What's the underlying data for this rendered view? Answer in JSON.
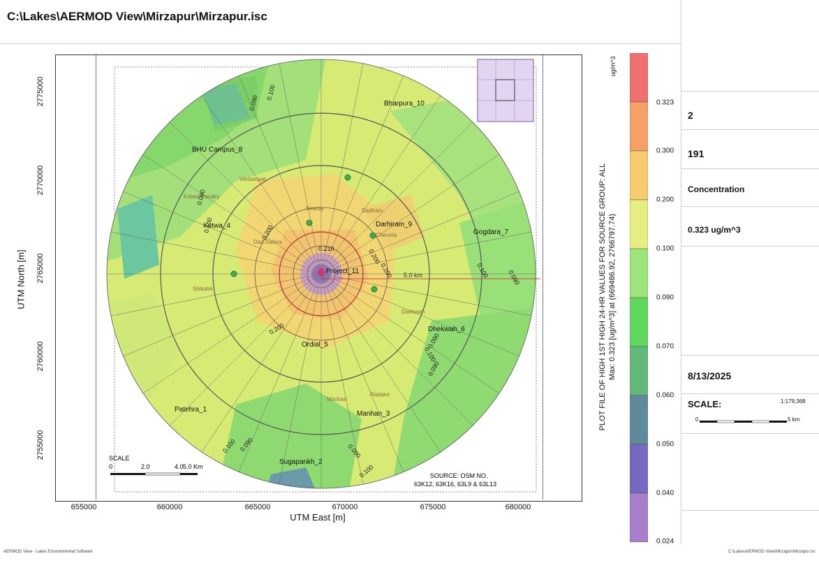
{
  "title": "C:\\Lakes\\AERMOD View\\Mirzapur\\Mirzapur.isc",
  "axes": {
    "xlabel": "UTM East [m]",
    "ylabel": "UTM North [m]",
    "xticks": [
      "655000",
      "660000",
      "665000",
      "670000",
      "675000",
      "680000"
    ],
    "yticks": [
      "2775000",
      "2770000",
      "2765000",
      "2760000",
      "2755000"
    ]
  },
  "plot_title": "PLOT FILE OF HIGH 1ST HIGH 24-HR VALUES FOR SOURCE GROUP: ALL",
  "max_line": "Max:  0.323  [ug/m^3]  at (669486.92, 2766797.74)",
  "legend": {
    "unit": "ug/m^3",
    "levels": [
      "0.323",
      "0.300",
      "0.200",
      "0.100",
      "0.090",
      "0.070",
      "0.060",
      "0.050",
      "0.040",
      "0.024"
    ],
    "colors": [
      "#f07070",
      "#f6a066",
      "#f8cc6e",
      "#e6ee82",
      "#9ce57a",
      "#60d85e",
      "#62b878",
      "#5e8a9c",
      "#7768c4",
      "#a77fcc"
    ]
  },
  "map": {
    "places": [
      "Bharpura_10",
      "BHU Campus_8",
      "Kotwa_4",
      "Darhiram_9",
      "Gogdara_7",
      "Dhekwah_6",
      "Ordial_5",
      "Patehra_1",
      "Manhan_3",
      "Sugapankh_2",
      "Project_11"
    ],
    "bg_places": [
      "Kotwa Pandey",
      "Vindampal",
      "Nearby",
      "Dadiram",
      "Cheunta",
      "Dad Dahira",
      "Shikatni",
      "Dekhwah",
      "Manhan",
      "Rajapur"
    ],
    "contour_labels": [
      "0.090",
      "0.100",
      "0.090",
      "0.100",
      "0.200",
      "0.200",
      "0.210",
      "0.200",
      "0.100",
      "0.090",
      "0.200",
      "0.100",
      "0.090",
      "0.100",
      "0.090",
      "0.090",
      "0.100",
      "0.090"
    ],
    "ring_label": "5.0 km",
    "source": "SOURCE:      OSM NO.",
    "source2": "63K12, 63K16, 63L9 & 63L13",
    "scale_title": "SCALE",
    "scale_ticks": [
      "0",
      "2.0",
      "4.0",
      "5.0 Km"
    ]
  },
  "right_panel": {
    "sources": "2",
    "receptors": "191",
    "output_type": "Concentration",
    "max": "0.323 ug/m^3",
    "date": "8/13/2025",
    "scale_label": "SCALE:",
    "scale_ratio": "1:179,368",
    "scale_zero": "0",
    "scale_km": "5 km"
  },
  "footer_left": "AERMOD View - Lakes Environmental Software",
  "footer_right": "C:\\Lakes\\AERMOD View\\Mirzapur\\Mirzapur.isc"
}
